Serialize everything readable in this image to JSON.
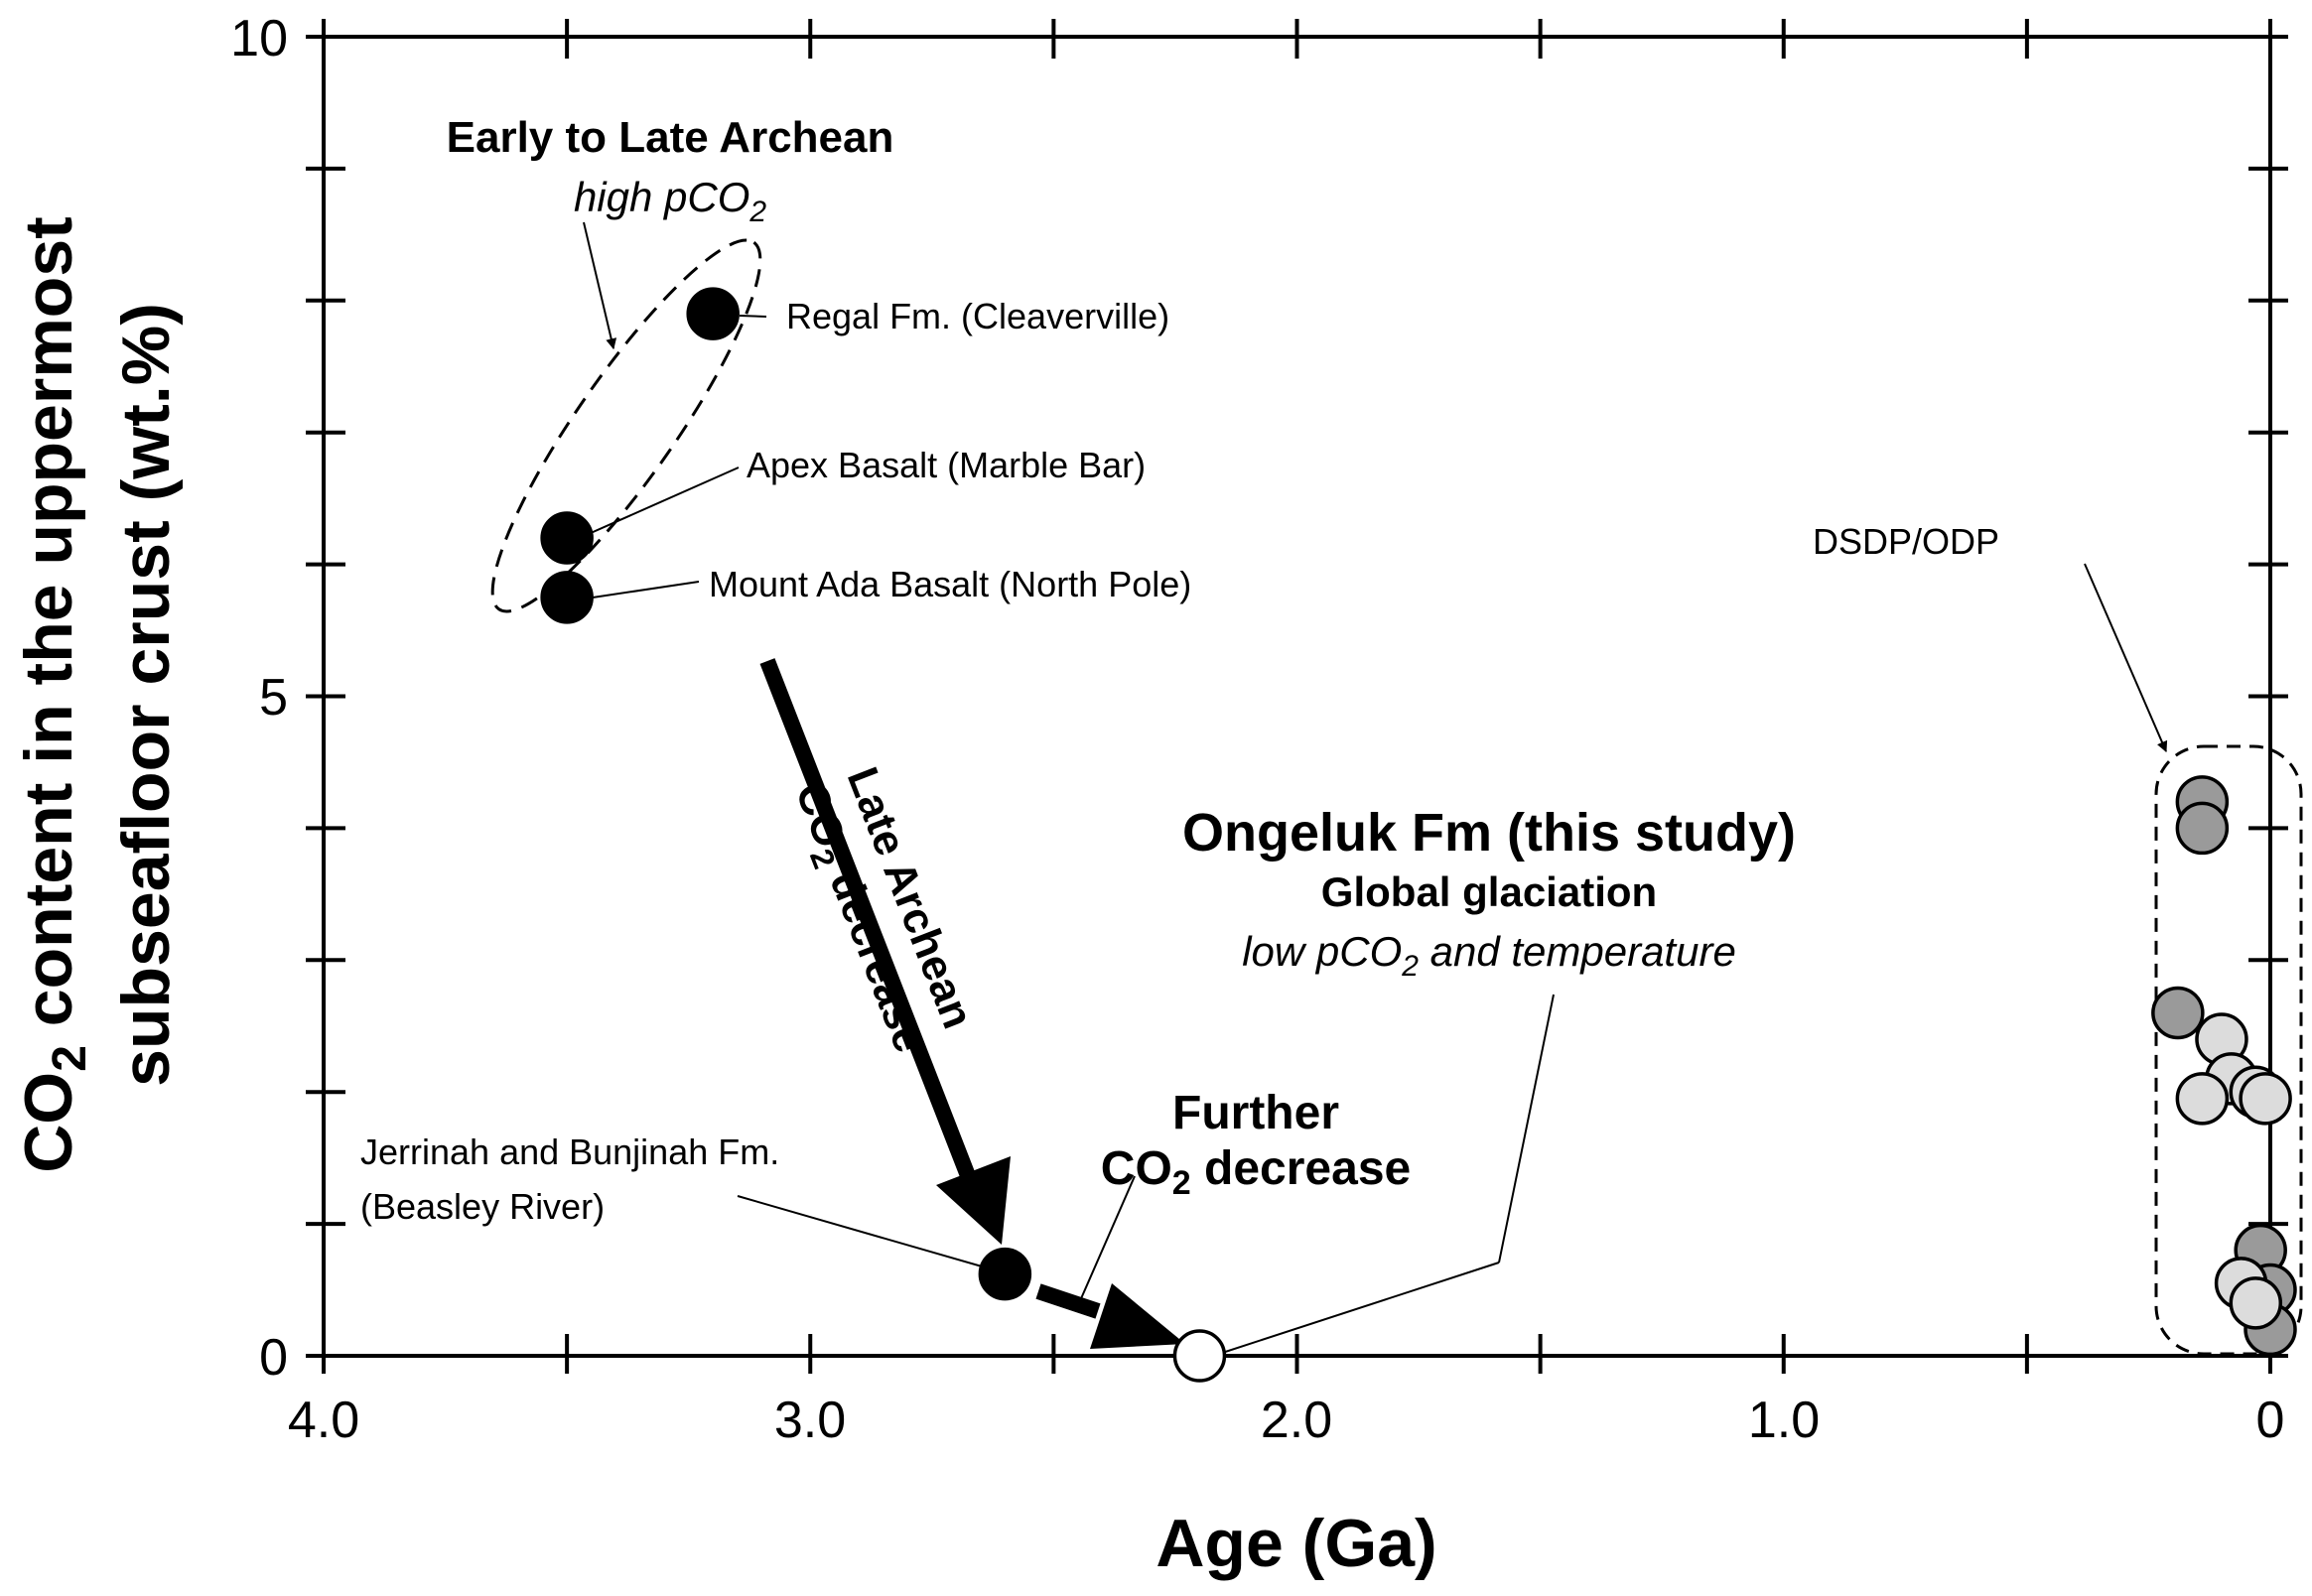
{
  "chart_data": {
    "type": "scatter",
    "xlabel": "Age (Ga)",
    "ylabel": {
      "pre": "CO",
      "sub": "2",
      "line1_rest": " content in the uppermost",
      "line2": "subseafloor crust (wt.%)"
    },
    "xlim": [
      4.0,
      0
    ],
    "ylim": [
      0,
      10
    ],
    "x_reversed": true,
    "x_ticks": [
      4.0,
      3.5,
      3.0,
      2.5,
      2.0,
      1.5,
      1.0,
      0.5,
      0
    ],
    "x_tick_labels": [
      "4.0",
      "3.0",
      "2.0",
      "1.0",
      "0"
    ],
    "x_tick_label_values": [
      4.0,
      3.0,
      2.0,
      1.0,
      0
    ],
    "y_ticks": [
      0,
      1,
      2,
      3,
      4,
      5,
      6,
      7,
      8,
      9,
      10
    ],
    "y_tick_labels": [
      "0",
      "5",
      "10"
    ],
    "y_tick_label_values": [
      0,
      5,
      10
    ],
    "grid": false,
    "series": [
      {
        "color": "#000000",
        "points": [
          {
            "x": 3.2,
            "y": 7.9,
            "label": "Regal Fm. (Cleaverville)"
          },
          {
            "x": 3.5,
            "y": 6.2,
            "label": "Apex Basalt (Marble Bar)"
          },
          {
            "x": 3.5,
            "y": 5.75,
            "label": "Mount Ada Basalt (North Pole)"
          },
          {
            "x": 2.6,
            "y": 0.62,
            "label": "Jerrinah and Bunjinah Fm. (Beasley River)"
          }
        ]
      },
      {
        "color": "#ffffff",
        "points": [
          {
            "x": 2.2,
            "y": 0.0,
            "label": "Ongeluk Fm (this study)"
          }
        ]
      },
      {
        "color": "#9a9a9a",
        "points": [
          {
            "x": 0.14,
            "y": 4.2
          },
          {
            "x": 0.14,
            "y": 4.0
          },
          {
            "x": 0.19,
            "y": 2.6
          },
          {
            "x": 0.02,
            "y": 0.8
          },
          {
            "x": 0.0,
            "y": 0.5
          },
          {
            "x": 0.0,
            "y": 0.2
          }
        ]
      },
      {
        "color": "#dcdcdc",
        "points": [
          {
            "x": 0.1,
            "y": 2.4
          },
          {
            "x": 0.08,
            "y": 2.1
          },
          {
            "x": 0.14,
            "y": 1.95
          },
          {
            "x": 0.03,
            "y": 2.0
          },
          {
            "x": 0.01,
            "y": 1.95
          },
          {
            "x": 0.06,
            "y": 0.55
          },
          {
            "x": 0.03,
            "y": 0.4
          }
        ]
      }
    ],
    "annotations": {
      "archean_title": "Early to Late Archean",
      "archean_sub_pre": "high pCO",
      "archean_sub_sub": "2",
      "regal": "Regal Fm. (Cleaverville)",
      "apex": "Apex Basalt (Marble Bar)",
      "mount_ada": "Mount Ada Basalt (North Pole)",
      "dsdp": "DSDP/ODP",
      "late_arch_line1": "Late Archean",
      "late_arch_co": "CO",
      "late_arch_sub": "2",
      "late_arch_rest": " decrease",
      "ongeluk_title": "Ongeluk Fm (this study)",
      "ongeluk_glaciation": "Global glaciation",
      "ongeluk_low_pre": "low pCO",
      "ongeluk_low_sub": "2",
      "ongeluk_low_post": " and temperature",
      "further_line1": "Further",
      "further_co": "CO",
      "further_sub": "2",
      "further_rest": " decrease",
      "jerrinah_line1": "Jerrinah and Bunjinah Fm.",
      "jerrinah_line2": "(Beasley River)"
    }
  }
}
